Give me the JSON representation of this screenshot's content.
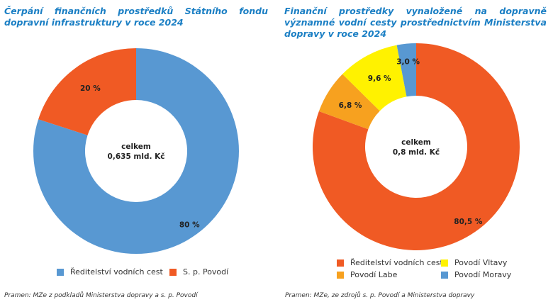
{
  "chart_data": [
    {
      "type": "pie",
      "variant": "donut",
      "title": "Čerpání finančních prostředků Státního fondu dopravní infrastruktury v roce 2024",
      "center_label": [
        "celkem",
        "0,635 mld. Kč"
      ],
      "categories": [
        "Ředitelství vodních cest",
        "S. p. Povodí"
      ],
      "values": [
        80,
        20
      ],
      "value_labels": [
        "80 %",
        "20 %"
      ],
      "colors": [
        "#5898d2",
        "#f05a24"
      ],
      "legend_position": "bottom",
      "source": "Pramen: MZe z podkladů Ministerstva dopravy a s. p. Povodí"
    },
    {
      "type": "pie",
      "variant": "donut",
      "title": "Finanční prostředky vynaložené na dopravně významné vodní cesty prostřednictvím Ministerstva dopravy v roce 2024",
      "center_label": [
        "celkem",
        "0,8 mld. Kč"
      ],
      "categories": [
        "Ředitelství vodních cest",
        "Povodí Labe",
        "Povodí Vltavy",
        "Povodí Moravy"
      ],
      "values": [
        80.5,
        6.8,
        9.6,
        3.0
      ],
      "value_labels": [
        "80,5 %",
        "6,8 %",
        "9,6 %",
        "3,0 %"
      ],
      "colors": [
        "#f05a24",
        "#f7a11f",
        "#fff200",
        "#5898d2"
      ],
      "legend_position": "bottom",
      "source": "Pramen: MZe, ze zdrojů s. p. Povodí a Ministerstva dopravy"
    }
  ]
}
